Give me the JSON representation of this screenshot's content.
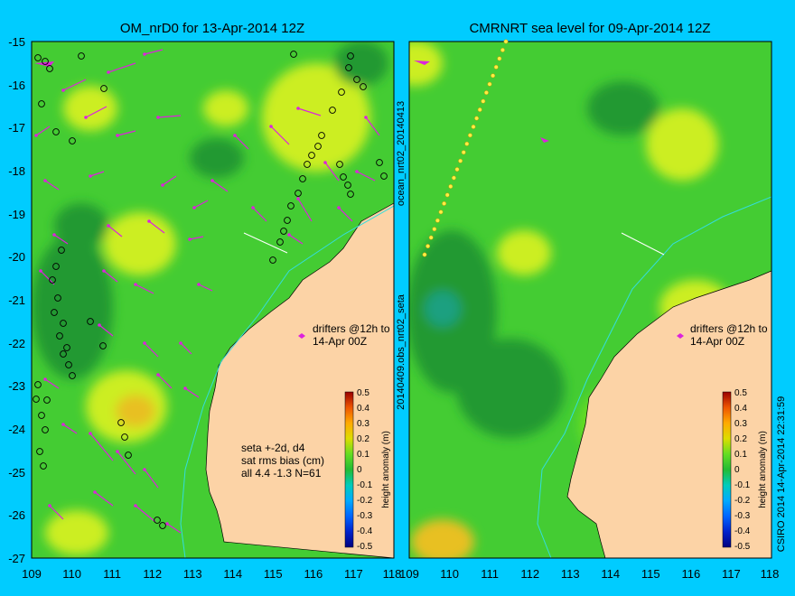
{
  "chart_data": [
    {
      "type": "heatmap",
      "title": "OM_nrD0 for 13-Apr-2014 12Z",
      "x_ticks": [
        "109",
        "110",
        "111",
        "112",
        "113",
        "114",
        "115",
        "116",
        "117",
        "118"
      ],
      "y_ticks": [
        "-15",
        "-16",
        "-17",
        "-18",
        "-19",
        "-20",
        "-21",
        "-22",
        "-23",
        "-24",
        "-25",
        "-26",
        "-27"
      ],
      "xlim": [
        109,
        118
      ],
      "ylim": [
        -27,
        -15
      ],
      "annotations": {
        "drifters": [
          "drifters @12h to",
          "14-Apr 00Z"
        ],
        "stats": [
          "seta +-2d, d4",
          "sat rms bias (cm)",
          "all 4.4 -1.3 N=61"
        ]
      },
      "side_label": "ocean_nrt02_20140413",
      "colorbar": {
        "label": "height anomaly (m)",
        "ticks": [
          "0.5",
          "0.4",
          "0.3",
          "0.2",
          "0.1",
          "0",
          "-0.1",
          "-0.2",
          "-0.3",
          "-0.4",
          "-0.5"
        ],
        "range": [
          -0.5,
          0.5
        ]
      }
    },
    {
      "type": "heatmap",
      "title": "CMRNRT sea level  for 09-Apr-2014 12Z",
      "x_ticks": [
        "109",
        "110",
        "111",
        "112",
        "113",
        "114",
        "115",
        "116",
        "117",
        "118"
      ],
      "xlim": [
        109,
        118
      ],
      "ylim": [
        -27,
        -15
      ],
      "annotations": {
        "drifters": [
          "drifters @12h to",
          "14-Apr 00Z"
        ]
      },
      "side_label": "20140409.obs_nrt02_seta",
      "colorbar": {
        "label": "height anomaly (m)",
        "ticks": [
          "0.5",
          "0.4",
          "0.3",
          "0.2",
          "0.1",
          "0",
          "-0.1",
          "-0.2",
          "-0.3",
          "-0.4",
          "-0.5"
        ],
        "range": [
          -0.5,
          0.5
        ]
      },
      "credit": "CSIRO 2014  14-Apr-2014 22:31:59"
    }
  ],
  "colors": {
    "background": "#00ccff",
    "land": "#fcd3a6",
    "ocean_base": "#44cc33",
    "ocean_low": "#229933",
    "ocean_high": "#ccee22",
    "drifter": "#dd22dd",
    "track": "#33dddd"
  }
}
